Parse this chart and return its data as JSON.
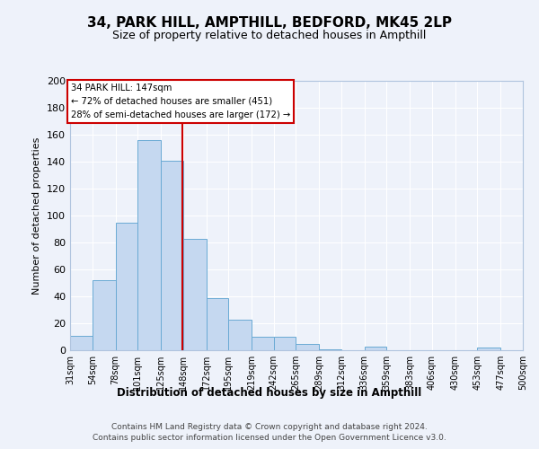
{
  "title": "34, PARK HILL, AMPTHILL, BEDFORD, MK45 2LP",
  "subtitle": "Size of property relative to detached houses in Ampthill",
  "xlabel": "Distribution of detached houses by size in Ampthill",
  "ylabel": "Number of detached properties",
  "bin_edges": [
    31,
    54,
    78,
    101,
    125,
    148,
    172,
    195,
    219,
    242,
    265,
    289,
    312,
    336,
    359,
    383,
    406,
    430,
    453,
    477,
    500
  ],
  "bar_heights": [
    11,
    52,
    95,
    156,
    141,
    83,
    39,
    23,
    10,
    10,
    5,
    1,
    0,
    3,
    0,
    0,
    0,
    0,
    2,
    0
  ],
  "bar_color": "#c5d8f0",
  "bar_edgecolor": "#6aaad4",
  "vline_x": 147,
  "vline_color": "#cc0000",
  "ylim": [
    0,
    200
  ],
  "yticks": [
    0,
    20,
    40,
    60,
    80,
    100,
    120,
    140,
    160,
    180,
    200
  ],
  "annotation_title": "34 PARK HILL: 147sqm",
  "annotation_line1": "← 72% of detached houses are smaller (451)",
  "annotation_line2": "28% of semi-detached houses are larger (172) →",
  "annotation_box_color": "#ffffff",
  "annotation_box_edgecolor": "#cc0000",
  "footer_line1": "Contains HM Land Registry data © Crown copyright and database right 2024.",
  "footer_line2": "Contains public sector information licensed under the Open Government Licence v3.0.",
  "background_color": "#eef2fa",
  "grid_color": "#ffffff",
  "tick_labels": [
    "31sqm",
    "54sqm",
    "78sqm",
    "101sqm",
    "125sqm",
    "148sqm",
    "172sqm",
    "195sqm",
    "219sqm",
    "242sqm",
    "265sqm",
    "289sqm",
    "312sqm",
    "336sqm",
    "359sqm",
    "383sqm",
    "406sqm",
    "430sqm",
    "453sqm",
    "477sqm",
    "500sqm"
  ]
}
